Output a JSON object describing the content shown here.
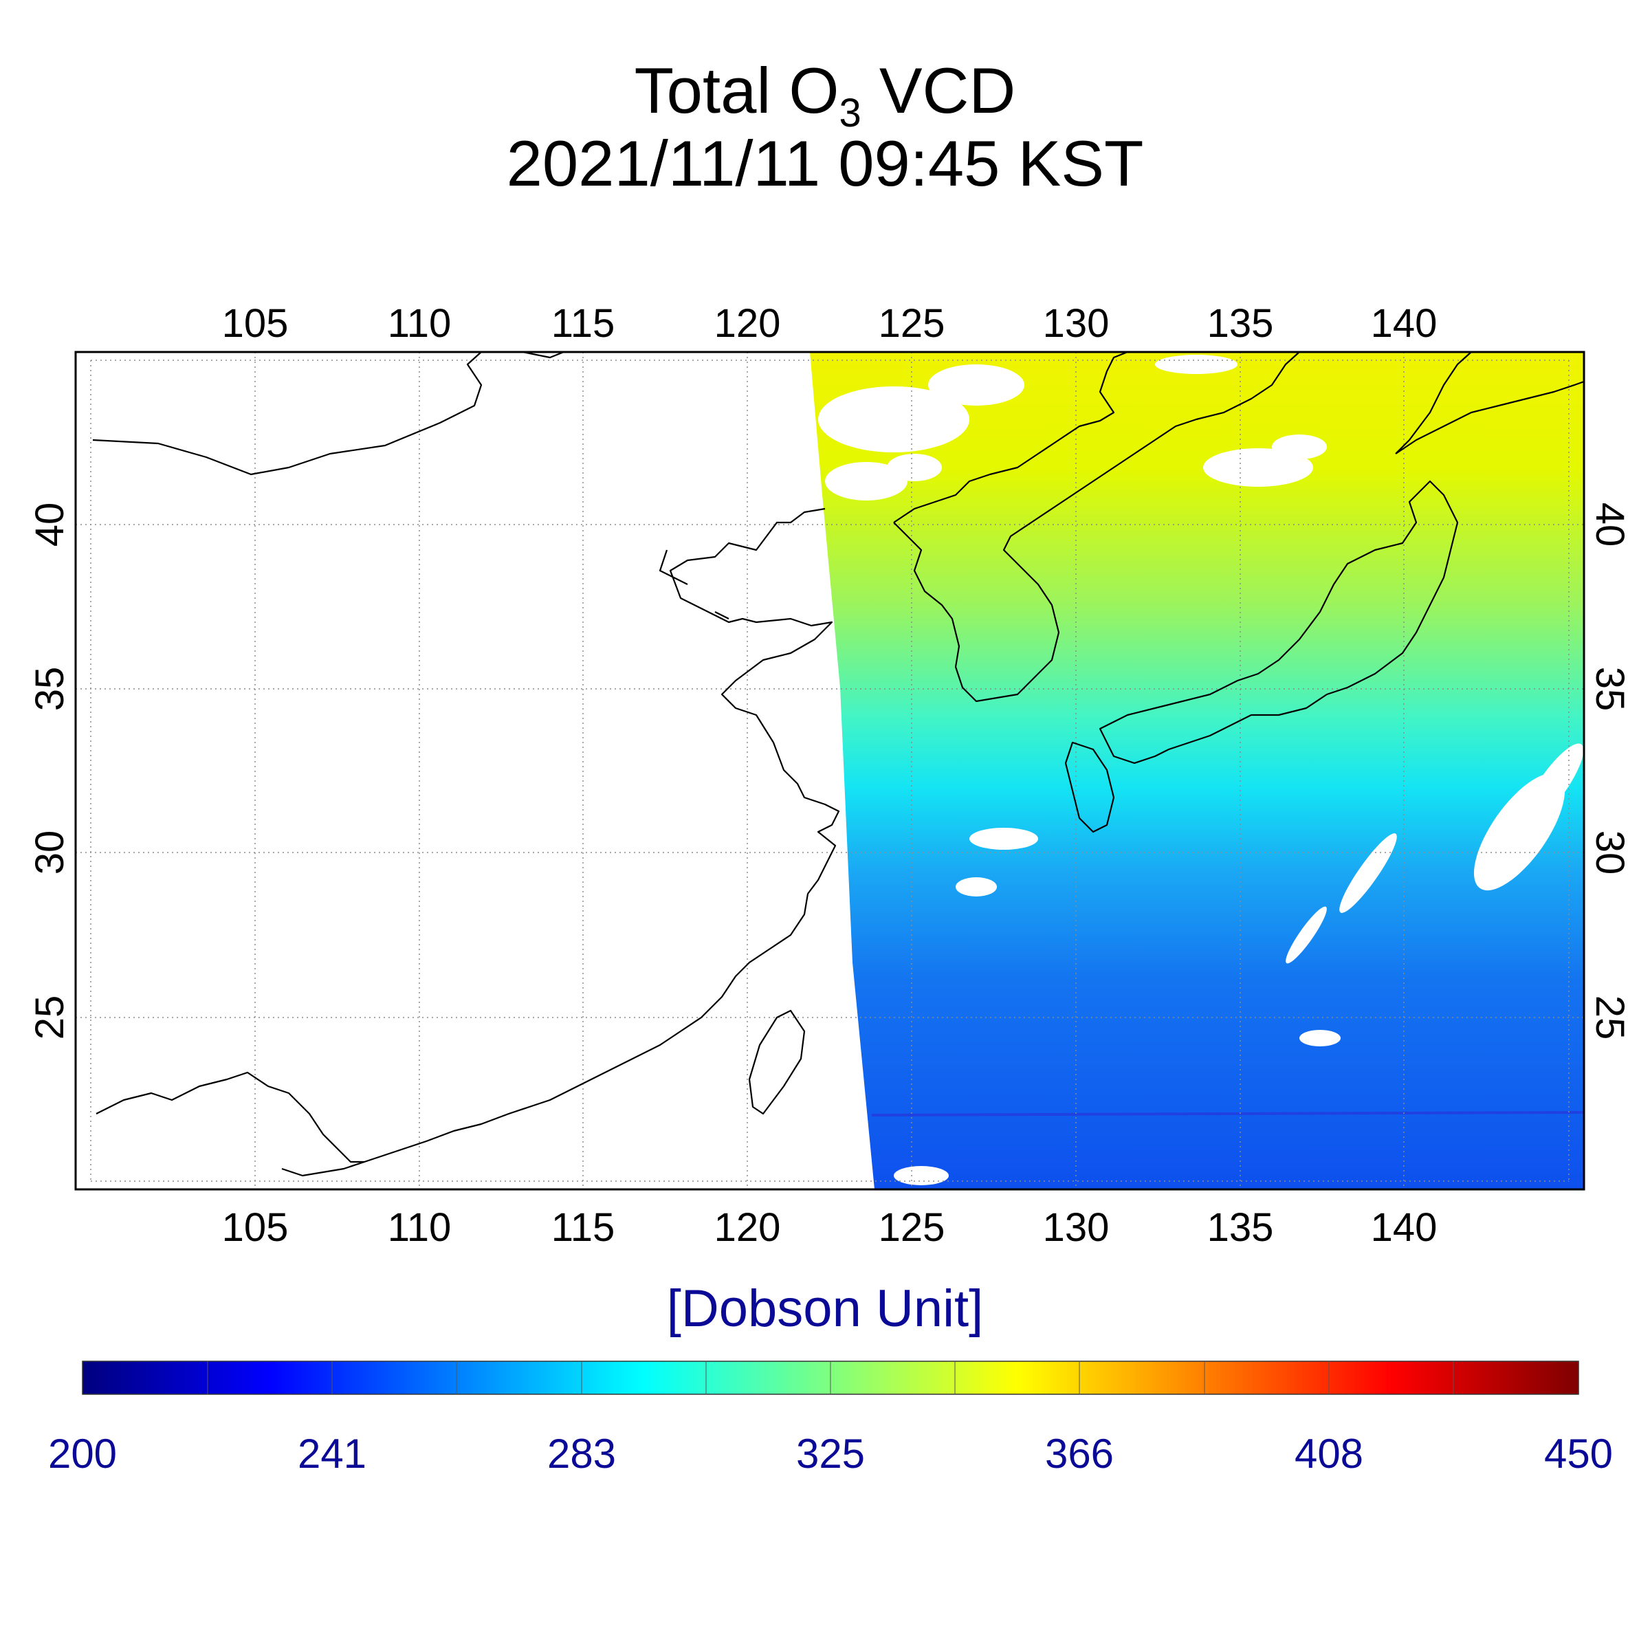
{
  "title": {
    "line1_prefix": "Total O",
    "line1_sub": "3",
    "line1_suffix": " VCD",
    "line2": "2021/11/11 09:45 KST"
  },
  "map": {
    "lon_range": [
      99.5,
      145.5
    ],
    "lat_range": [
      20.0,
      45.5
    ],
    "lon_ticks": [
      "105",
      "110",
      "115",
      "120",
      "125",
      "130",
      "135",
      "140"
    ],
    "lat_ticks": [
      "40",
      "35",
      "30",
      "25"
    ]
  },
  "colorbar": {
    "label": "[Dobson Unit]",
    "ticks": [
      "200",
      "241",
      "283",
      "325",
      "366",
      "408",
      "450"
    ],
    "colors": [
      "#00007f",
      "#0000ff",
      "#007fff",
      "#00ffff",
      "#7fff7f",
      "#ffff00",
      "#ff7f00",
      "#ff0000",
      "#7f0000"
    ]
  }
}
